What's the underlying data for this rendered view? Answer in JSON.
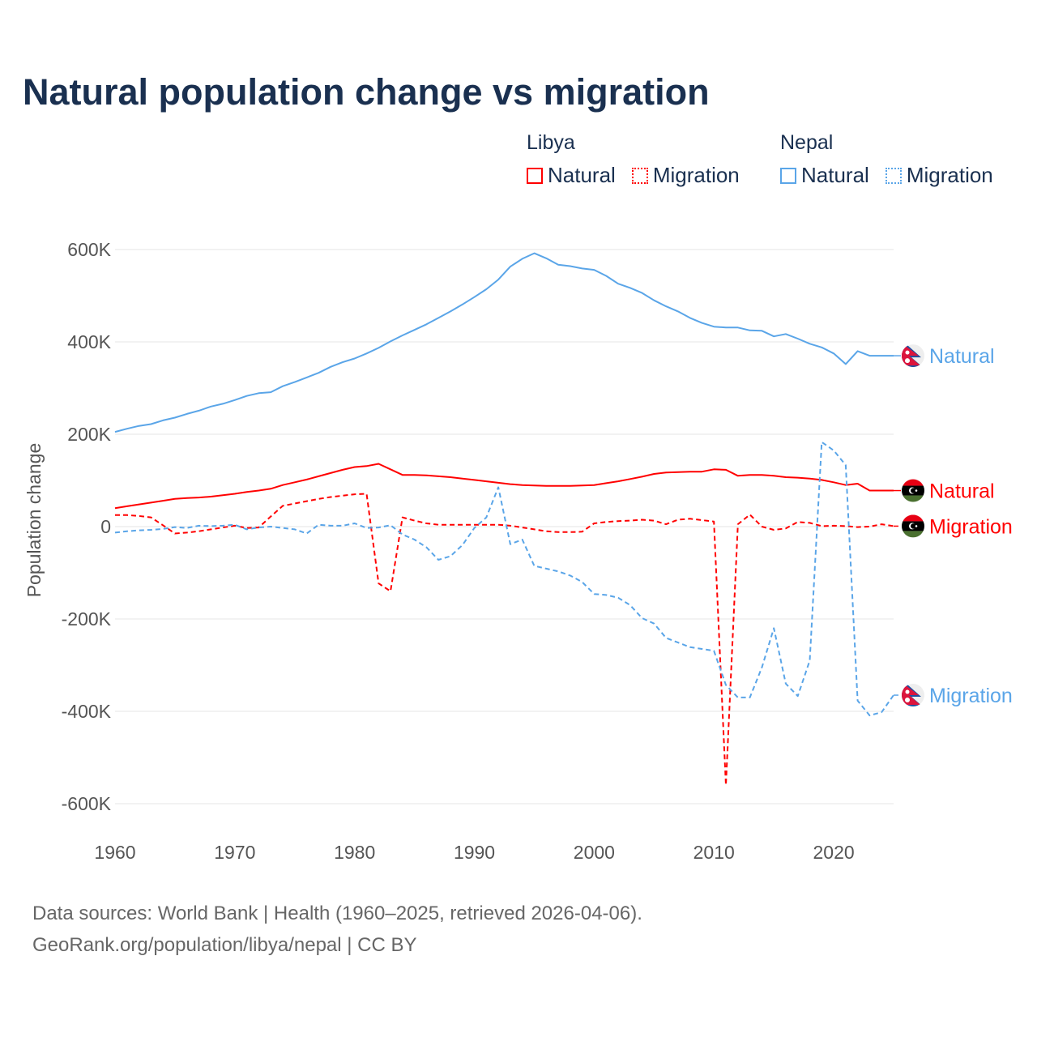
{
  "title": "Natural population change vs migration",
  "footer": {
    "line1": "Data sources: World Bank | Health (1960–2025, retrieved 2026-04-06).",
    "line2": "GeoRank.org/population/libya/nepal | CC BY"
  },
  "legend": {
    "groups": [
      {
        "name": "Libya",
        "items": [
          "Natural",
          "Migration"
        ]
      },
      {
        "name": "Nepal",
        "items": [
          "Natural",
          "Migration"
        ]
      }
    ]
  },
  "chart_data": {
    "type": "line",
    "title": "Natural population change vs migration",
    "xlabel": "",
    "ylabel": "Population change",
    "xlim": [
      1960,
      2025
    ],
    "ylim": [
      -600000,
      600000
    ],
    "x_ticks": [
      1960,
      1970,
      1980,
      1990,
      2000,
      2010,
      2020
    ],
    "x_tick_labels": [
      "1960",
      "1970",
      "1980",
      "1990",
      "2000",
      "2010",
      "2020"
    ],
    "y_ticks": [
      600000,
      400000,
      200000,
      0,
      -200000,
      -400000,
      -600000
    ],
    "y_tick_labels": [
      "600K",
      "400K",
      "200K",
      "0",
      "-200K",
      "-400K",
      "-600K"
    ],
    "grid": true,
    "legend_position": "top-right",
    "x_start": 1960,
    "series": [
      {
        "country": "Nepal",
        "name": "Natural",
        "color": "#5aa5e8",
        "dash": "solid",
        "values": [
          205,
          212,
          218,
          222,
          230,
          236,
          244,
          251,
          260,
          266,
          274,
          283,
          289,
          291,
          304,
          313,
          323,
          333,
          346,
          356,
          364,
          375,
          387,
          401,
          414,
          426,
          438,
          452,
          466,
          481,
          497,
          514,
          535,
          563,
          580,
          592,
          581,
          567,
          564,
          559,
          556,
          543,
          526,
          517,
          506,
          490,
          477,
          466,
          452,
          441,
          433,
          431,
          431,
          425,
          424,
          412,
          417,
          407,
          396,
          388,
          375,
          352,
          380,
          370,
          370,
          370
        ]
      },
      {
        "country": "Libya",
        "name": "Natural",
        "color": "#ff0000",
        "dash": "solid",
        "values": [
          40,
          44,
          48,
          52,
          56,
          60,
          62,
          63,
          65,
          68,
          71,
          75,
          78,
          82,
          90,
          96,
          102,
          109,
          116,
          123,
          129,
          131,
          136,
          124,
          112,
          112,
          111,
          109,
          107,
          104,
          101,
          98,
          95,
          92,
          90,
          89,
          88,
          88,
          88,
          89,
          90,
          94,
          98,
          103,
          108,
          114,
          117,
          118,
          119,
          119,
          124,
          123,
          110,
          112,
          112,
          110,
          107,
          106,
          104,
          101,
          96,
          90,
          93,
          78,
          78,
          78
        ]
      },
      {
        "country": "Libya",
        "name": "Migration",
        "color": "#ff0000",
        "dash": "dashed",
        "values": [
          25,
          25,
          23,
          20,
          3,
          -15,
          -13,
          -10,
          -6,
          -2,
          2,
          -3,
          -2,
          22,
          45,
          50,
          55,
          60,
          64,
          67,
          70,
          71,
          -123,
          -140,
          20,
          13,
          7,
          4,
          4,
          4,
          4,
          4,
          4,
          2,
          -2,
          -6,
          -10,
          -12,
          -12,
          -11,
          7,
          10,
          12,
          13,
          15,
          13,
          5,
          15,
          17,
          14,
          11,
          -560,
          5,
          26,
          0,
          -7,
          -4,
          10,
          8,
          1,
          2,
          1,
          -1,
          0,
          5,
          1
        ]
      },
      {
        "country": "Nepal",
        "name": "Migration",
        "color": "#5aa5e8",
        "dash": "dashed",
        "values": [
          -13,
          -10,
          -8,
          -7,
          -5,
          -1,
          -3,
          2,
          1,
          2,
          4,
          -6,
          -2,
          0,
          -3,
          -6,
          -15,
          4,
          2,
          2,
          7,
          -3,
          -2,
          3,
          -17,
          -28,
          -45,
          -72,
          -64,
          -40,
          -3,
          20,
          85,
          -38,
          -28,
          -85,
          -91,
          -97,
          -106,
          -120,
          -146,
          -148,
          -154,
          -170,
          -198,
          -210,
          -241,
          -251,
          -261,
          -265,
          -269,
          -343,
          -370,
          -370,
          -305,
          -220,
          -340,
          -367,
          -290,
          183,
          165,
          133,
          -377,
          -409,
          -402,
          -365
        ]
      }
    ],
    "values_unit": "thousands"
  }
}
